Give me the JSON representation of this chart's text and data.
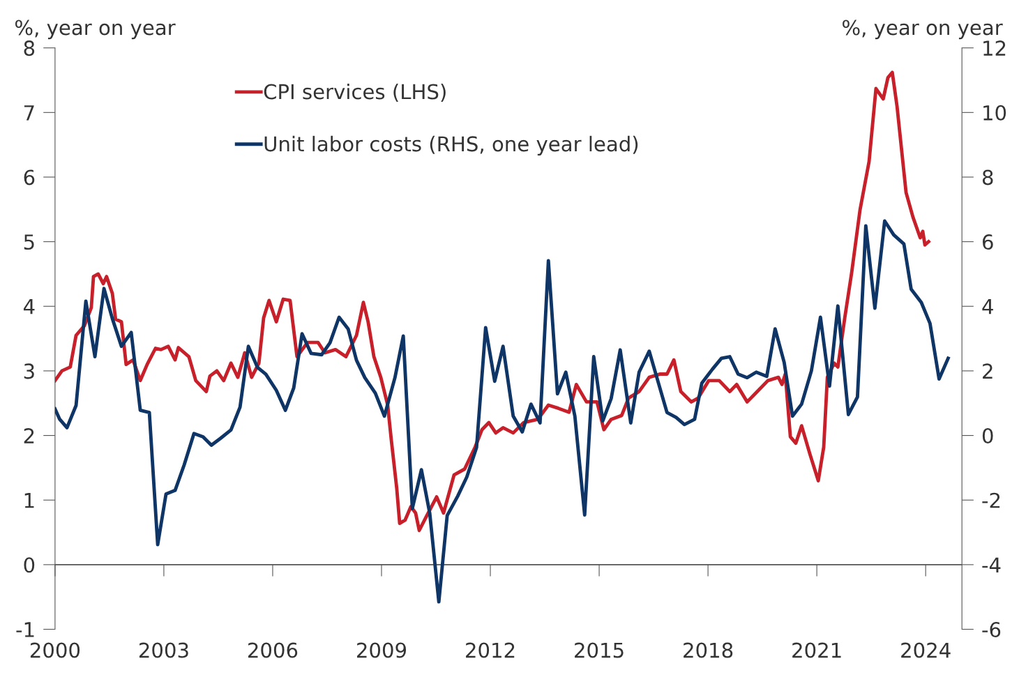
{
  "chart_data": {
    "type": "line",
    "ylabel": "%, year on year",
    "y2label": "%, year on year",
    "xlim": [
      2000,
      2025
    ],
    "xticks": [
      2000,
      2003,
      2006,
      2009,
      2012,
      2015,
      2018,
      2021,
      2024
    ],
    "ylim": [
      -1,
      8
    ],
    "yticks": [
      -1,
      0,
      1,
      2,
      3,
      4,
      5,
      6,
      7,
      8
    ],
    "y2lim": [
      -6,
      12
    ],
    "y2ticks": [
      -6,
      -4,
      -2,
      0,
      2,
      4,
      6,
      8,
      10,
      12
    ],
    "grid": false,
    "ref_lines": [
      {
        "axis": "y",
        "value": 0,
        "color": "#555555"
      }
    ],
    "legend": "top left",
    "marker": "none",
    "line_style": "solid",
    "series": [
      {
        "name": "CPI services (LHS)",
        "color": "#c8202a",
        "x": [
          2000.0,
          2000.19,
          2000.42,
          2000.58,
          2000.81,
          2001.0,
          2001.06,
          2001.19,
          2001.33,
          2001.42,
          2001.58,
          2001.67,
          2001.83,
          2001.96,
          2002.15,
          2002.35,
          2002.54,
          2002.77,
          2002.92,
          2003.12,
          2003.31,
          2003.4,
          2003.69,
          2003.88,
          2004.17,
          2004.27,
          2004.46,
          2004.65,
          2004.85,
          2005.04,
          2005.23,
          2005.42,
          2005.62,
          2005.75,
          2005.9,
          2006.1,
          2006.29,
          2006.48,
          2006.67,
          2006.96,
          2007.25,
          2007.44,
          2007.73,
          2008.02,
          2008.31,
          2008.5,
          2008.63,
          2008.79,
          2008.98,
          2009.17,
          2009.27,
          2009.42,
          2009.5,
          2009.65,
          2009.81,
          2009.94,
          2010.04,
          2010.23,
          2010.52,
          2010.71,
          2011.0,
          2011.29,
          2011.58,
          2011.77,
          2011.96,
          2012.15,
          2012.35,
          2012.63,
          2012.92,
          2013.31,
          2013.6,
          2013.88,
          2014.17,
          2014.37,
          2014.65,
          2014.94,
          2015.13,
          2015.33,
          2015.62,
          2015.81,
          2016.1,
          2016.38,
          2016.67,
          2016.87,
          2017.06,
          2017.25,
          2017.54,
          2017.73,
          2018.02,
          2018.31,
          2018.6,
          2018.79,
          2019.08,
          2019.27,
          2019.65,
          2019.94,
          2020.04,
          2020.13,
          2020.27,
          2020.42,
          2020.58,
          2020.81,
          2021.04,
          2021.19,
          2021.29,
          2021.48,
          2021.58,
          2021.77,
          2021.96,
          2022.19,
          2022.44,
          2022.63,
          2022.83,
          2022.96,
          2023.08,
          2023.21,
          2023.46,
          2023.65,
          2023.85,
          2023.92,
          2023.98,
          2024.08
        ],
        "values": [
          2.85,
          3.0,
          3.06,
          3.55,
          3.7,
          3.98,
          4.46,
          4.5,
          4.35,
          4.46,
          4.2,
          3.8,
          3.76,
          3.1,
          3.17,
          2.85,
          3.1,
          3.35,
          3.33,
          3.38,
          3.17,
          3.36,
          3.22,
          2.85,
          2.68,
          2.92,
          3.0,
          2.85,
          3.12,
          2.9,
          3.28,
          2.9,
          3.12,
          3.82,
          4.09,
          3.76,
          4.11,
          4.09,
          3.22,
          3.44,
          3.44,
          3.28,
          3.33,
          3.22,
          3.55,
          4.06,
          3.76,
          3.22,
          2.9,
          2.47,
          1.93,
          1.18,
          0.64,
          0.69,
          0.9,
          0.8,
          0.53,
          0.74,
          1.05,
          0.8,
          1.39,
          1.48,
          1.82,
          2.09,
          2.2,
          2.04,
          2.12,
          2.04,
          2.2,
          2.25,
          2.47,
          2.42,
          2.36,
          2.79,
          2.52,
          2.52,
          2.09,
          2.25,
          2.31,
          2.58,
          2.68,
          2.9,
          2.95,
          2.95,
          3.17,
          2.68,
          2.52,
          2.58,
          2.85,
          2.85,
          2.68,
          2.79,
          2.52,
          2.63,
          2.85,
          2.9,
          2.79,
          2.95,
          1.98,
          1.88,
          2.15,
          1.71,
          1.3,
          1.82,
          2.9,
          3.12,
          3.06,
          3.82,
          4.52,
          5.49,
          6.24,
          7.37,
          7.21,
          7.54,
          7.62,
          7.1,
          5.76,
          5.38,
          5.06,
          5.16,
          4.95,
          5.0
        ]
      },
      {
        "name": "Unit labor costs (RHS, one year lead)",
        "color": "#0e3566",
        "axis": "y2",
        "x": [
          2000.0,
          2000.13,
          2000.33,
          2000.58,
          2000.85,
          2001.1,
          2001.35,
          2001.58,
          2001.83,
          2002.1,
          2002.35,
          2002.6,
          2002.83,
          2003.06,
          2003.31,
          2003.56,
          2003.83,
          2004.08,
          2004.31,
          2004.56,
          2004.85,
          2005.1,
          2005.33,
          2005.58,
          2005.81,
          2006.1,
          2006.35,
          2006.58,
          2006.81,
          2007.06,
          2007.35,
          2007.58,
          2007.83,
          2008.08,
          2008.31,
          2008.54,
          2008.83,
          2009.08,
          2009.37,
          2009.6,
          2009.85,
          2010.1,
          2010.33,
          2010.58,
          2010.81,
          2011.1,
          2011.35,
          2011.62,
          2011.87,
          2012.12,
          2012.35,
          2012.63,
          2012.88,
          2013.12,
          2013.37,
          2013.6,
          2013.85,
          2014.08,
          2014.33,
          2014.6,
          2014.85,
          2015.1,
          2015.33,
          2015.58,
          2015.87,
          2016.1,
          2016.38,
          2016.63,
          2016.87,
          2017.12,
          2017.35,
          2017.63,
          2017.83,
          2018.12,
          2018.37,
          2018.6,
          2018.83,
          2019.08,
          2019.33,
          2019.62,
          2019.85,
          2020.1,
          2020.33,
          2020.58,
          2020.85,
          2021.1,
          2021.35,
          2021.58,
          2021.87,
          2022.12,
          2022.35,
          2022.6,
          2022.87,
          2023.12,
          2023.4,
          2023.6,
          2023.88,
          2024.12,
          2024.37,
          2024.62
        ],
        "values": [
          0.82,
          0.5,
          0.24,
          0.93,
          4.16,
          2.44,
          4.55,
          3.62,
          2.76,
          3.19,
          0.78,
          0.71,
          -3.38,
          -1.81,
          -1.7,
          -0.91,
          0.06,
          -0.04,
          -0.3,
          -0.09,
          0.17,
          0.88,
          2.76,
          2.11,
          1.9,
          1.4,
          0.78,
          1.47,
          3.15,
          2.54,
          2.5,
          2.87,
          3.66,
          3.3,
          2.33,
          1.79,
          1.31,
          0.6,
          1.79,
          3.08,
          -2.26,
          -1.06,
          -2.41,
          -5.15,
          -2.48,
          -1.88,
          -1.29,
          -0.37,
          3.34,
          1.68,
          2.76,
          0.6,
          0.11,
          0.97,
          0.39,
          5.41,
          1.29,
          1.96,
          0.6,
          -2.46,
          2.44,
          0.45,
          1.14,
          2.65,
          0.39,
          1.96,
          2.61,
          1.64,
          0.71,
          0.56,
          0.34,
          0.5,
          1.62,
          2.05,
          2.39,
          2.44,
          1.9,
          1.79,
          1.96,
          1.83,
          3.3,
          2.26,
          0.6,
          0.97,
          2.0,
          3.66,
          1.53,
          4.01,
          0.65,
          1.19,
          6.49,
          3.94,
          6.64,
          6.21,
          5.93,
          4.53,
          4.12,
          3.47,
          1.75,
          2.39
        ]
      }
    ]
  }
}
